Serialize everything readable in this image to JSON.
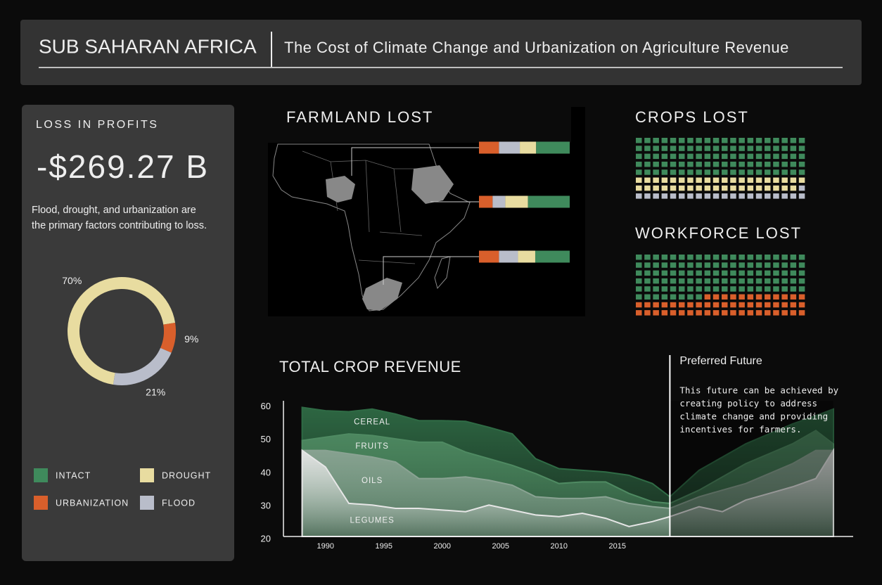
{
  "header": {
    "title": "SUB SAHARAN AFRICA",
    "subtitle": "The Cost of Climate Change and Urbanization on Agriculture Revenue"
  },
  "profits": {
    "label": "LOSS IN PROFITS",
    "value": "-$269.27 B",
    "description": [
      "Flood, drought, and urbanization are",
      "the primary factors contributing to loss."
    ]
  },
  "chart_data": [
    {
      "type": "pie",
      "values": [
        70,
        9,
        21
      ],
      "value_labels": [
        "70%",
        "9%",
        "21%"
      ],
      "colors": [
        "#e8dca0",
        "#d95f2b",
        "#b9bdca"
      ]
    },
    {
      "type": "bar",
      "title": "FARMLAND LOST",
      "orientation": "horizontal",
      "stacked": true,
      "categories": [
        null,
        null,
        null
      ],
      "series": [
        {
          "name": "URBANIZATION",
          "color": "#d95f2b",
          "values": [
            22,
            15,
            22
          ]
        },
        {
          "name": "FLOOD",
          "color": "#b9bdca",
          "values": [
            23,
            14,
            21
          ]
        },
        {
          "name": "DROUGHT",
          "color": "#e8dca0",
          "values": [
            18,
            25,
            19
          ]
        },
        {
          "name": "INTACT",
          "color": "#3f8a5c",
          "values": [
            37,
            46,
            38
          ]
        }
      ]
    },
    {
      "type": "waffle",
      "title": "CROPS LOST",
      "values": [
        100,
        39,
        21
      ],
      "colors": [
        "#3f8a5c",
        "#e8dca0",
        "#b9bdca"
      ]
    },
    {
      "type": "waffle",
      "title": "WORKFORCE LOST",
      "values": [
        108,
        52
      ],
      "colors": [
        "#3f8a5c",
        "#d95f2b"
      ]
    },
    {
      "type": "area",
      "title": "TOTAL CROP REVENUE",
      "x": [
        1988,
        1990,
        1992,
        1994,
        1996,
        1998,
        2000,
        2002,
        2004,
        2006,
        2008,
        2010,
        2012,
        2014,
        2016,
        2018,
        2019.5,
        2022,
        2024,
        2026,
        2028,
        2030,
        2032,
        2033.5
      ],
      "series": [
        {
          "name": "CEREAL",
          "color": "#2f6b45",
          "values": [
            59,
            58,
            57.7,
            58.5,
            57,
            55,
            55,
            54.8,
            53,
            51,
            43.5,
            40.5,
            40,
            39.5,
            38.5,
            36,
            32,
            40,
            44,
            48,
            51,
            54,
            56.5,
            58.5
          ]
        },
        {
          "name": "FRUITS",
          "color": "#4f8a62",
          "values": [
            49,
            50,
            51,
            50.5,
            49.5,
            48.5,
            48.5,
            45.5,
            43.5,
            41.5,
            39,
            36,
            36.5,
            36.5,
            33,
            30.5,
            30,
            34,
            38,
            42,
            45,
            48,
            52,
            48
          ]
        },
        {
          "name": "OILS",
          "color": "#8aa393",
          "values": [
            46,
            46,
            45,
            44,
            42.5,
            37.5,
            37.5,
            38,
            37,
            35.5,
            32,
            31.5,
            31.5,
            32,
            30,
            29,
            28.5,
            32,
            34,
            36,
            39,
            42,
            46,
            46
          ]
        },
        {
          "name": "LEGUMES",
          "color": "#e6e6e6",
          "values": [
            46,
            41,
            30,
            29.5,
            28.5,
            28.5,
            28,
            27.5,
            29.5,
            28,
            26.5,
            26,
            27,
            25.5,
            23,
            24.5,
            26,
            29,
            27.5,
            31,
            33,
            35,
            37.5,
            46
          ]
        }
      ],
      "xlim": [
        1986.4,
        2035.2
      ],
      "ylim": [
        20,
        61
      ],
      "xticks": [
        1990,
        1995,
        2000,
        2005,
        2010,
        2015
      ],
      "yticks": [
        20,
        30,
        40,
        50,
        60
      ],
      "annotation": {
        "x": 2019.5,
        "title": "Preferred Future",
        "lines": [
          "This future can be achieved by",
          "creating policy to address",
          "climate change and providing",
          "incentives for farmers."
        ]
      }
    }
  ]
}
